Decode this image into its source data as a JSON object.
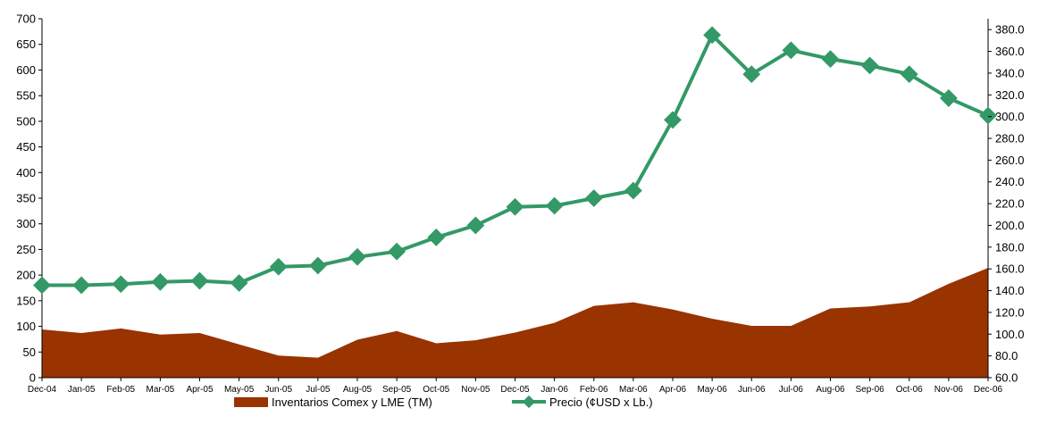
{
  "chart_data": {
    "type": "area+line",
    "categories": [
      "Dec-04",
      "Jan-05",
      "Feb-05",
      "Mar-05",
      "Apr-05",
      "May-05",
      "Jun-05",
      "Jul-05",
      "Aug-05",
      "Sep-05",
      "Oct-05",
      "Nov-05",
      "Dec-05",
      "Jan-06",
      "Feb-06",
      "Mar-06",
      "Apr-06",
      "May-06",
      "Jun-06",
      "Jul-06",
      "Aug-06",
      "Sep-06",
      "Oct-06",
      "Nov-06",
      "Dec-06"
    ],
    "series": [
      {
        "name": "Inventarios Comex y LME (TM)",
        "type": "area",
        "axis": "left",
        "color": "#993300",
        "values": [
          94,
          87,
          96,
          84,
          87,
          65,
          43,
          39,
          74,
          91,
          67,
          73,
          88,
          107,
          140,
          147,
          133,
          115,
          101,
          101,
          135,
          139,
          147,
          183,
          214
        ]
      },
      {
        "name": "Precio (¢USD x Lb.)",
        "type": "line",
        "axis": "right",
        "color": "#339966",
        "values": [
          145,
          145,
          146,
          148,
          149,
          147,
          162,
          163,
          171,
          176,
          189,
          200,
          217,
          218,
          225,
          232,
          297,
          375,
          339,
          361,
          353,
          347,
          339,
          317,
          301
        ]
      }
    ],
    "y_left": {
      "min": 0,
      "max": 700,
      "step": 50,
      "ticks": [
        "0",
        "50",
        "100",
        "150",
        "200",
        "250",
        "300",
        "350",
        "400",
        "450",
        "500",
        "550",
        "600",
        "650",
        "700"
      ]
    },
    "y_right": {
      "min": 60,
      "max": 390,
      "step": 20,
      "ticks": [
        "60.0",
        "80.0",
        "100.0",
        "120.0",
        "140.0",
        "160.0",
        "180.0",
        "200.0",
        "220.0",
        "240.0",
        "260.0",
        "280.0",
        "300.0",
        "320.0",
        "340.0",
        "360.0",
        "380.0"
      ]
    },
    "legend": {
      "placement": "bottom",
      "items": [
        "Inventarios Comex y LME (TM)",
        "Precio (¢USD x Lb.)"
      ]
    },
    "grid": false
  }
}
